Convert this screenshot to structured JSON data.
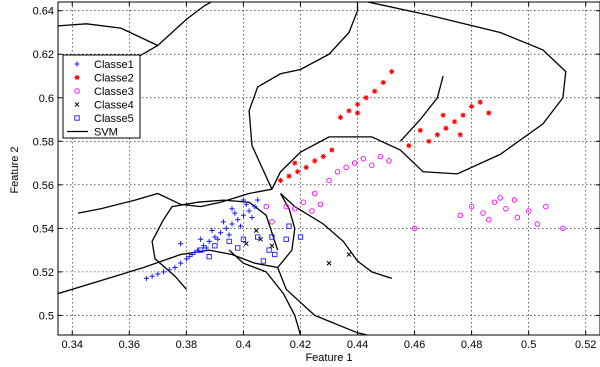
{
  "chart_data": {
    "type": "scatter",
    "xlabel": "Feature 1",
    "ylabel": "Feature 2",
    "xlim": [
      0.335,
      0.525
    ],
    "ylim": [
      0.491,
      0.644
    ],
    "xticks": [
      0.34,
      0.36,
      0.38,
      0.4,
      0.42,
      0.44,
      0.46,
      0.48,
      0.5,
      0.52
    ],
    "xtick_labels": [
      "0.34",
      "0.36",
      "0.38",
      "0.4",
      "0.42",
      "0.44",
      "0.46",
      "0.48",
      "0.5",
      "0.52"
    ],
    "yticks": [
      0.5,
      0.52,
      0.54,
      0.56,
      0.58,
      0.6,
      0.62,
      0.64
    ],
    "ytick_labels": [
      "0.5",
      "0.52",
      "0.54",
      "0.56",
      "0.58",
      "0.6",
      "0.62",
      "0.64"
    ],
    "grid": true,
    "legend_position": "upper-left",
    "series": [
      {
        "name": "Classe1",
        "marker": "plus",
        "color": "#1a1aff",
        "points": [
          [
            0.366,
            0.517
          ],
          [
            0.368,
            0.518
          ],
          [
            0.37,
            0.519
          ],
          [
            0.372,
            0.52
          ],
          [
            0.374,
            0.521
          ],
          [
            0.376,
            0.522
          ],
          [
            0.378,
            0.524
          ],
          [
            0.38,
            0.526
          ],
          [
            0.382,
            0.528
          ],
          [
            0.384,
            0.53
          ],
          [
            0.386,
            0.532
          ],
          [
            0.388,
            0.534
          ],
          [
            0.39,
            0.536
          ],
          [
            0.392,
            0.538
          ],
          [
            0.394,
            0.54
          ],
          [
            0.396,
            0.542
          ],
          [
            0.398,
            0.544
          ],
          [
            0.4,
            0.546
          ],
          [
            0.402,
            0.548
          ],
          [
            0.404,
            0.55
          ],
          [
            0.385,
            0.535
          ],
          [
            0.389,
            0.539
          ],
          [
            0.393,
            0.543
          ],
          [
            0.397,
            0.547
          ],
          [
            0.401,
            0.551
          ],
          [
            0.405,
            0.553
          ],
          [
            0.383,
            0.529
          ],
          [
            0.387,
            0.531
          ],
          [
            0.391,
            0.535
          ],
          [
            0.395,
            0.537
          ],
          [
            0.399,
            0.541
          ],
          [
            0.403,
            0.545
          ],
          [
            0.381,
            0.527
          ],
          [
            0.378,
            0.533
          ],
          [
            0.396,
            0.549
          ],
          [
            0.4,
            0.553
          ]
        ]
      },
      {
        "name": "Classe2",
        "marker": "star",
        "color": "#ff0000",
        "points": [
          [
            0.413,
            0.562
          ],
          [
            0.416,
            0.564
          ],
          [
            0.419,
            0.566
          ],
          [
            0.422,
            0.568
          ],
          [
            0.425,
            0.571
          ],
          [
            0.428,
            0.573
          ],
          [
            0.431,
            0.576
          ],
          [
            0.434,
            0.591
          ],
          [
            0.437,
            0.594
          ],
          [
            0.44,
            0.597
          ],
          [
            0.443,
            0.6
          ],
          [
            0.446,
            0.603
          ],
          [
            0.449,
            0.607
          ],
          [
            0.452,
            0.612
          ],
          [
            0.465,
            0.58
          ],
          [
            0.468,
            0.583
          ],
          [
            0.471,
            0.586
          ],
          [
            0.474,
            0.589
          ],
          [
            0.477,
            0.592
          ],
          [
            0.48,
            0.596
          ],
          [
            0.462,
            0.585
          ],
          [
            0.47,
            0.592
          ],
          [
            0.476,
            0.583
          ],
          [
            0.483,
            0.598
          ],
          [
            0.458,
            0.578
          ],
          [
            0.486,
            0.593
          ],
          [
            0.44,
            0.593
          ],
          [
            0.418,
            0.57
          ]
        ]
      },
      {
        "name": "Classe3",
        "marker": "circle",
        "color": "#ff00ff",
        "points": [
          [
            0.415,
            0.55
          ],
          [
            0.418,
            0.549
          ],
          [
            0.421,
            0.552
          ],
          [
            0.424,
            0.548
          ],
          [
            0.427,
            0.551
          ],
          [
            0.43,
            0.562
          ],
          [
            0.433,
            0.566
          ],
          [
            0.436,
            0.568
          ],
          [
            0.439,
            0.57
          ],
          [
            0.442,
            0.572
          ],
          [
            0.445,
            0.569
          ],
          [
            0.448,
            0.573
          ],
          [
            0.451,
            0.571
          ],
          [
            0.425,
            0.556
          ],
          [
            0.41,
            0.543
          ],
          [
            0.408,
            0.55
          ],
          [
            0.48,
            0.55
          ],
          [
            0.484,
            0.547
          ],
          [
            0.488,
            0.552
          ],
          [
            0.492,
            0.549
          ],
          [
            0.496,
            0.545
          ],
          [
            0.5,
            0.548
          ],
          [
            0.503,
            0.542
          ],
          [
            0.506,
            0.55
          ],
          [
            0.49,
            0.554
          ],
          [
            0.495,
            0.553
          ],
          [
            0.486,
            0.544
          ],
          [
            0.512,
            0.54
          ],
          [
            0.476,
            0.546
          ],
          [
            0.46,
            0.54
          ]
        ]
      },
      {
        "name": "Classe4",
        "marker": "cross",
        "color": "#000000",
        "points": [
          [
            0.401,
            0.533
          ],
          [
            0.406,
            0.535
          ],
          [
            0.41,
            0.532
          ],
          [
            0.4045,
            0.539
          ],
          [
            0.43,
            0.524
          ],
          [
            0.437,
            0.528
          ]
        ]
      },
      {
        "name": "Classe5",
        "marker": "square",
        "color": "#1a1aff",
        "points": [
          [
            0.385,
            0.53
          ],
          [
            0.39,
            0.532
          ],
          [
            0.395,
            0.534
          ],
          [
            0.4,
            0.535
          ],
          [
            0.405,
            0.536
          ],
          [
            0.41,
            0.536
          ],
          [
            0.415,
            0.535
          ],
          [
            0.42,
            0.536
          ],
          [
            0.409,
            0.53
          ],
          [
            0.411,
            0.528
          ],
          [
            0.388,
            0.527
          ],
          [
            0.398,
            0.531
          ],
          [
            0.416,
            0.541
          ],
          [
            0.407,
            0.525
          ]
        ]
      }
    ],
    "boundary_label": "SVM",
    "boundaries": [
      [
        [
          0.335,
          0.633
        ],
        [
          0.345,
          0.634
        ],
        [
          0.357,
          0.632
        ],
        [
          0.37,
          0.624
        ]
      ],
      [
        [
          0.357,
          0.612
        ],
        [
          0.362,
          0.618
        ],
        [
          0.37,
          0.624
        ],
        [
          0.38,
          0.636
        ],
        [
          0.386,
          0.642
        ],
        [
          0.39,
          0.645
        ]
      ],
      [
        [
          0.44,
          0.645
        ],
        [
          0.465,
          0.638
        ],
        [
          0.49,
          0.63
        ],
        [
          0.505,
          0.622
        ],
        [
          0.513,
          0.612
        ],
        [
          0.512,
          0.6
        ],
        [
          0.505,
          0.588
        ],
        [
          0.49,
          0.574
        ],
        [
          0.475,
          0.565
        ],
        [
          0.463,
          0.566
        ],
        [
          0.455,
          0.576
        ],
        [
          0.445,
          0.582
        ],
        [
          0.43,
          0.582
        ],
        [
          0.42,
          0.575
        ],
        [
          0.413,
          0.566
        ],
        [
          0.41,
          0.558
        ],
        [
          0.402,
          0.556
        ],
        [
          0.392,
          0.552
        ],
        [
          0.385,
          0.55
        ],
        [
          0.378,
          0.551
        ],
        [
          0.37,
          0.556
        ],
        [
          0.362,
          0.553
        ],
        [
          0.35,
          0.549
        ],
        [
          0.342,
          0.547
        ]
      ],
      [
        [
          0.41,
          0.558
        ],
        [
          0.403,
          0.578
        ],
        [
          0.402,
          0.594
        ],
        [
          0.405,
          0.605
        ],
        [
          0.413,
          0.611
        ],
        [
          0.42,
          0.613
        ],
        [
          0.43,
          0.62
        ],
        [
          0.437,
          0.63
        ],
        [
          0.44,
          0.64
        ],
        [
          0.44,
          0.645
        ]
      ],
      [
        [
          0.335,
          0.51
        ],
        [
          0.35,
          0.516
        ],
        [
          0.365,
          0.522
        ],
        [
          0.378,
          0.528
        ],
        [
          0.388,
          0.53
        ],
        [
          0.396,
          0.528
        ],
        [
          0.404,
          0.524
        ],
        [
          0.412,
          0.522
        ]
      ],
      [
        [
          0.412,
          0.522
        ],
        [
          0.417,
          0.53
        ],
        [
          0.418,
          0.54
        ],
        [
          0.416,
          0.549
        ],
        [
          0.413,
          0.556
        ],
        [
          0.418,
          0.55
        ],
        [
          0.428,
          0.542
        ],
        [
          0.435,
          0.534
        ],
        [
          0.44,
          0.525
        ],
        [
          0.445,
          0.52
        ],
        [
          0.452,
          0.517
        ]
      ],
      [
        [
          0.372,
          0.544
        ],
        [
          0.375,
          0.55
        ],
        [
          0.384,
          0.552
        ],
        [
          0.393,
          0.553
        ],
        [
          0.402,
          0.552
        ],
        [
          0.408,
          0.546
        ],
        [
          0.41,
          0.538
        ],
        [
          0.412,
          0.53
        ]
      ],
      [
        [
          0.412,
          0.522
        ],
        [
          0.415,
          0.512
        ],
        [
          0.425,
          0.5
        ],
        [
          0.44,
          0.492
        ],
        [
          0.45,
          0.489
        ]
      ],
      [
        [
          0.395,
          0.53
        ],
        [
          0.4,
          0.524
        ],
        [
          0.408,
          0.52
        ],
        [
          0.414,
          0.51
        ],
        [
          0.418,
          0.5
        ],
        [
          0.42,
          0.491
        ]
      ],
      [
        [
          0.372,
          0.544
        ],
        [
          0.368,
          0.534
        ],
        [
          0.369,
          0.526
        ],
        [
          0.376,
          0.518
        ],
        [
          0.38,
          0.512
        ]
      ],
      [
        [
          0.455,
          0.58
        ],
        [
          0.462,
          0.59
        ],
        [
          0.468,
          0.6
        ],
        [
          0.47,
          0.61
        ]
      ]
    ]
  }
}
